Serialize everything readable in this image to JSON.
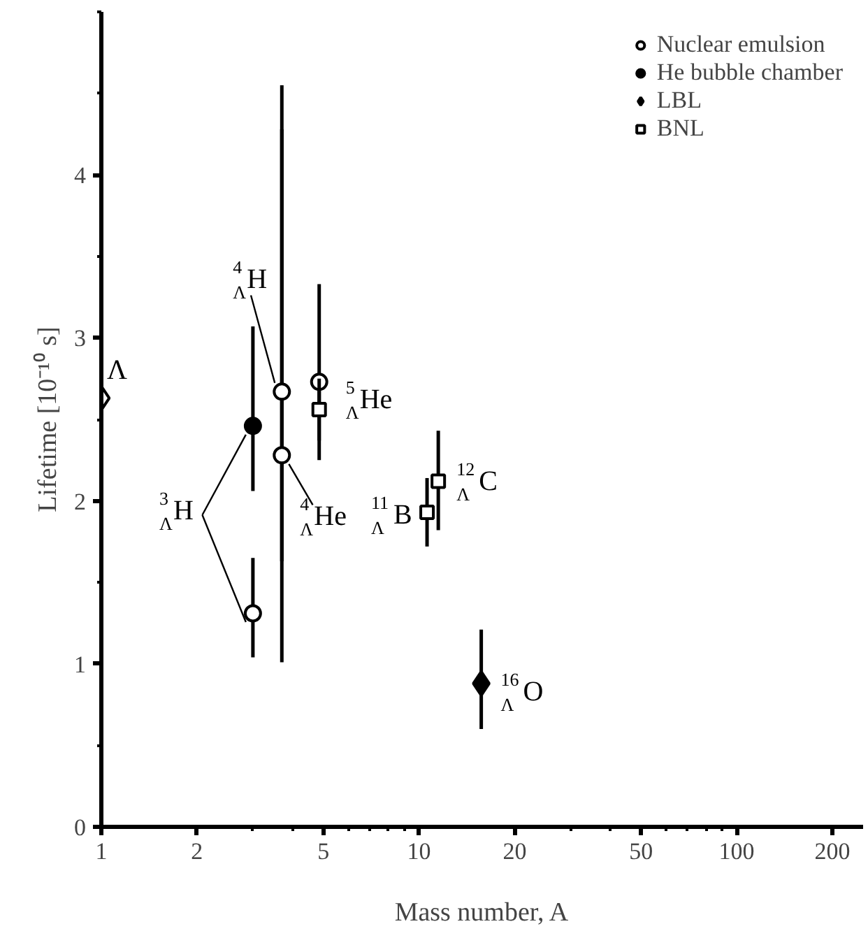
{
  "chart_data": {
    "type": "scatter",
    "xlabel": "Mass number, A",
    "ylabel": "Lifetime [10⁻¹⁰ s]",
    "log": "x",
    "xlim": [
      1,
      250
    ],
    "xticks": [
      1,
      2,
      5,
      10,
      20,
      50,
      100,
      200
    ],
    "ylim": [
      0,
      5
    ],
    "yticks": [
      0,
      1,
      2,
      3,
      4
    ],
    "grid": false,
    "legend": "top right",
    "series": [
      {
        "name": "Nuclear emulsion",
        "color": "#000000",
        "marker": "circle",
        "x": [
          3,
          3.7,
          3.7,
          4.85
        ],
        "values": [
          1.31,
          2.67,
          2.28,
          2.73
        ],
        "errors": [
          [
            1.04,
            1.65
          ],
          [
            1.63,
            4.28
          ],
          [
            1.01,
            4.55
          ],
          [
            2.25,
            3.33
          ]
        ]
      },
      {
        "name": "He bubble chamber",
        "color": "#000000",
        "marker": "circle",
        "x": [
          3
        ],
        "values": [
          2.46
        ],
        "errors": [
          [
            2.06,
            3.07
          ]
        ]
      },
      {
        "name": "LBL",
        "color": "#000000",
        "marker": "diamond",
        "x": [
          15.7
        ],
        "values": [
          0.88
        ],
        "errors": [
          [
            0.6,
            1.21
          ]
        ]
      },
      {
        "name": "BNL",
        "color": "#000000",
        "marker": "square",
        "x": [
          4.85,
          10.6,
          11.5
        ],
        "values": [
          2.56,
          1.93,
          2.12
        ],
        "errors": [
          [
            2.37,
            2.75
          ],
          [
            1.72,
            2.14
          ],
          [
            1.82,
            2.43
          ]
        ]
      },
      {
        "color": "#000000",
        "marker": "diamond",
        "x": [
          1
        ],
        "values": [
          2.63
        ]
      }
    ],
    "annotations": [
      {
        "text": "Λ",
        "x": 1,
        "y": 2.63
      },
      {
        "text": "$^{3}$$_{Λ}$H",
        "x": 3,
        "y": 2.46
      },
      {
        "text": "$^{4}$$_{Λ}$H",
        "x": 3.7,
        "y": 2.67
      },
      {
        "text": "$^{4}$$_{Λ}$He",
        "x": 3.7,
        "y": 2.28
      },
      {
        "text": "$^{5}$$_{Λ}$He",
        "x": 4.85,
        "y": 2.73
      },
      {
        "text": "$^{11}$$_{Λ}$B",
        "x": 10.6,
        "y": 1.93
      },
      {
        "text": "$^{12}$$_{Λ}$C",
        "x": 11.5,
        "y": 2.12
      },
      {
        "text": "$^{16}$$_{Λ}$O",
        "x": 15.7,
        "y": 0.88
      }
    ]
  }
}
